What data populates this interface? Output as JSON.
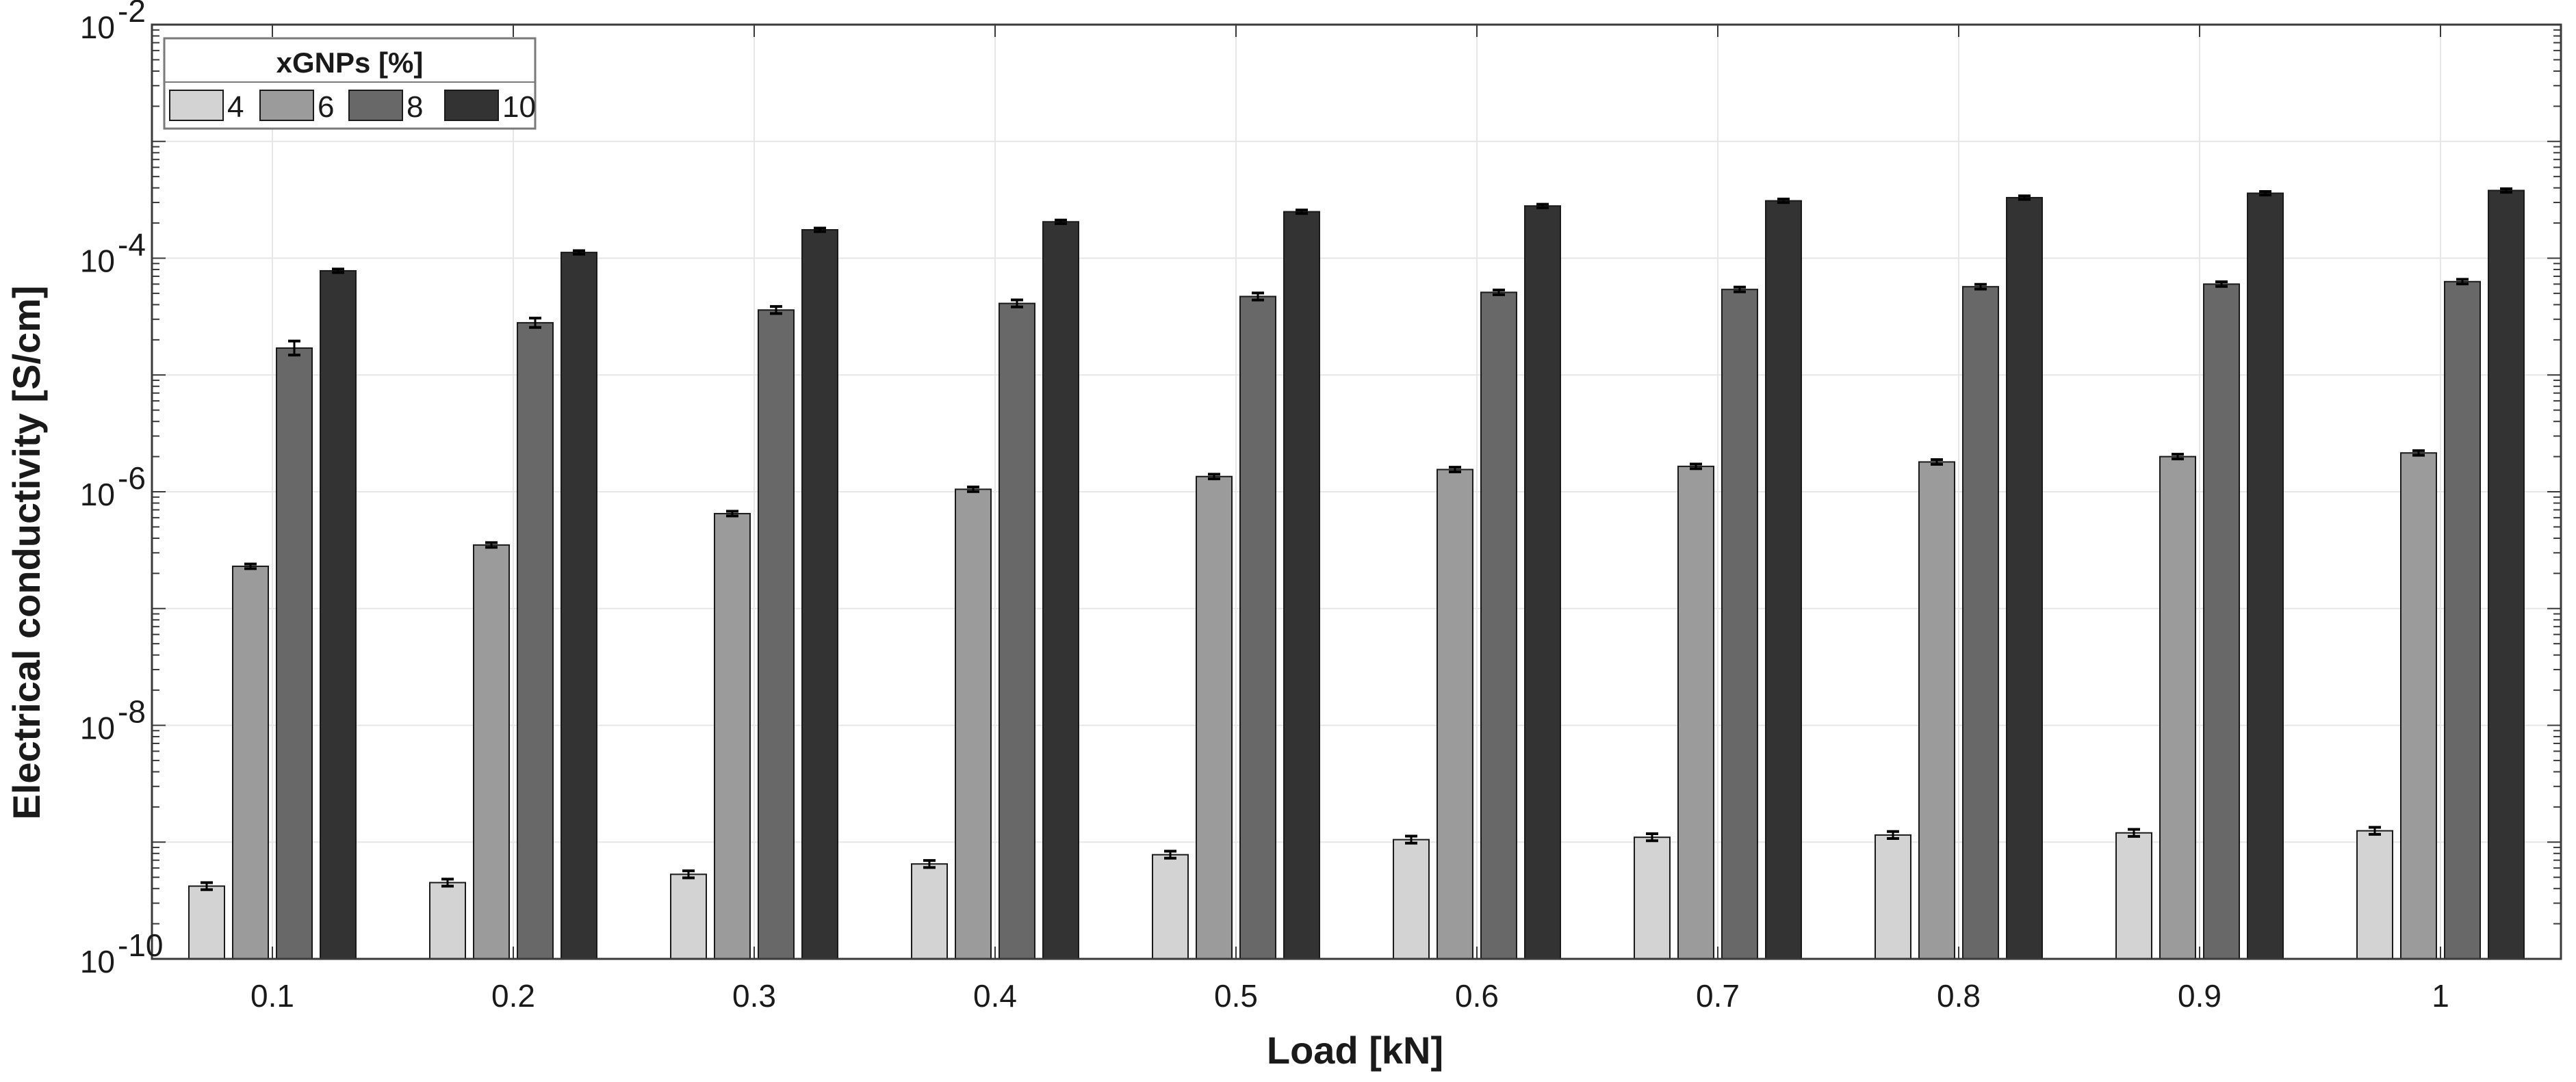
{
  "chart_data": {
    "type": "bar",
    "scale": "log",
    "xlabel": "Load [kN]",
    "ylabel": "Electrical conductivity [S/cm]",
    "ylim": [
      1e-10,
      0.01
    ],
    "grid": true,
    "legend": {
      "title": "xGNPs [%]",
      "placement": "top-left"
    },
    "categories": [
      "0.1",
      "0.2",
      "0.3",
      "0.4",
      "0.5",
      "0.6",
      "0.7",
      "0.8",
      "0.9",
      "1"
    ],
    "yticks": [
      {
        "value": 1e-10,
        "base": "10",
        "exp": "-10"
      },
      {
        "value": 1e-08,
        "base": "10",
        "exp": "-8"
      },
      {
        "value": 1e-06,
        "base": "10",
        "exp": "-6"
      },
      {
        "value": 0.0001,
        "base": "10",
        "exp": "-4"
      },
      {
        "value": 0.01,
        "base": "10",
        "exp": "-2"
      }
    ],
    "series": [
      {
        "name": "4",
        "color": "#d3d3d3",
        "values": [
          4.2e-10,
          4.5e-10,
          5.3e-10,
          6.5e-10,
          7.8e-10,
          1.05e-09,
          1.1e-09,
          1.15e-09,
          1.2e-09,
          1.25e-09
        ],
        "errors": [
          0.03,
          0.03,
          0.03,
          0.03,
          0.03,
          0.03,
          0.03,
          0.03,
          0.03,
          0.03
        ]
      },
      {
        "name": "6",
        "color": "#9b9b9b",
        "values": [
          2.3e-07,
          3.5e-07,
          6.5e-07,
          1.05e-06,
          1.35e-06,
          1.55e-06,
          1.65e-06,
          1.8e-06,
          2e-06,
          2.15e-06
        ],
        "errors": [
          0.02,
          0.02,
          0.02,
          0.02,
          0.02,
          0.02,
          0.02,
          0.02,
          0.02,
          0.02
        ]
      },
      {
        "name": "8",
        "color": "#686868",
        "values": [
          1.7e-05,
          2.8e-05,
          3.6e-05,
          4.1e-05,
          4.7e-05,
          5.1e-05,
          5.4e-05,
          5.7e-05,
          6e-05,
          6.3e-05
        ],
        "errors": [
          0.06,
          0.04,
          0.03,
          0.03,
          0.03,
          0.02,
          0.02,
          0.02,
          0.02,
          0.02
        ]
      },
      {
        "name": "10",
        "color": "#333333",
        "values": [
          7.8e-05,
          0.000112,
          0.000175,
          0.000205,
          0.00025,
          0.00028,
          0.00031,
          0.00033,
          0.00036,
          0.00038
        ],
        "errors": [
          0.015,
          0.015,
          0.015,
          0.015,
          0.015,
          0.015,
          0.015,
          0.015,
          0.015,
          0.015
        ]
      }
    ]
  }
}
